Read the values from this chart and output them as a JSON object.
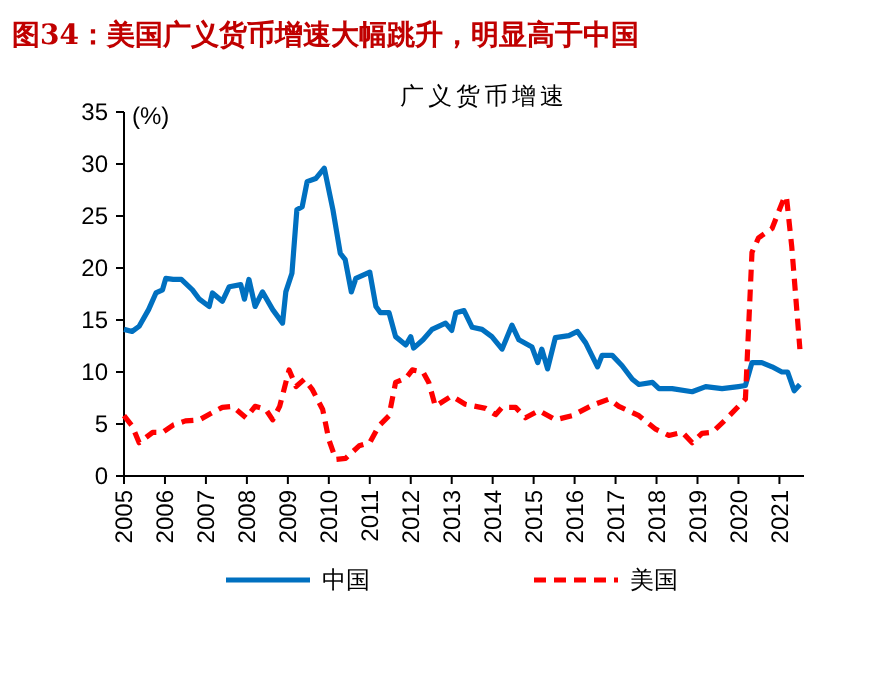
{
  "chart_data": {
    "type": "line",
    "title": "图34：美国广义货币增速大幅跳升，明显高于中国",
    "subtitle": "广义货币增速",
    "ylabel": "(%)",
    "xlim": [
      2005,
      2021.6
    ],
    "xticks": [
      2005,
      2006,
      2007,
      2008,
      2009,
      2010,
      2011,
      2012,
      2013,
      2014,
      2015,
      2016,
      2017,
      2018,
      2019,
      2020,
      2021
    ],
    "ylim": [
      0,
      35
    ],
    "yticks": [
      0,
      5,
      10,
      15,
      20,
      25,
      30,
      35
    ],
    "grid": false,
    "legend": "bottom",
    "series": [
      {
        "name": "中国",
        "color": "#0070c0",
        "line_style": "solid",
        "x": [
          2005.0,
          2005.2,
          2005.37,
          2005.6,
          2005.78,
          2005.94,
          2006.02,
          2006.2,
          2006.4,
          2006.67,
          2006.84,
          2007.08,
          2007.16,
          2007.4,
          2007.57,
          2007.85,
          2007.94,
          2008.05,
          2008.2,
          2008.38,
          2008.63,
          2008.87,
          2008.95,
          2009.1,
          2009.22,
          2009.35,
          2009.47,
          2009.68,
          2009.89,
          2010.1,
          2010.28,
          2010.4,
          2010.55,
          2010.66,
          2011.0,
          2011.15,
          2011.26,
          2011.47,
          2011.63,
          2011.88,
          2012.0,
          2012.07,
          2012.3,
          2012.52,
          2012.85,
          2013.0,
          2013.1,
          2013.3,
          2013.5,
          2013.74,
          2013.98,
          2014.23,
          2014.47,
          2014.64,
          2014.96,
          2015.1,
          2015.2,
          2015.34,
          2015.53,
          2015.86,
          2016.07,
          2016.27,
          2016.56,
          2016.67,
          2016.92,
          2017.16,
          2017.41,
          2017.57,
          2017.9,
          2018.06,
          2018.38,
          2018.87,
          2019.2,
          2019.6,
          2020.0,
          2020.17,
          2020.33,
          2020.57,
          2020.82,
          2021.06,
          2021.2,
          2021.36,
          2021.5
        ],
        "values": [
          14.1,
          13.9,
          14.4,
          16.0,
          17.6,
          17.9,
          19.0,
          18.9,
          18.9,
          17.9,
          17.0,
          16.3,
          17.6,
          16.8,
          18.2,
          18.4,
          17.0,
          18.9,
          16.3,
          17.7,
          16.0,
          14.7,
          17.7,
          19.5,
          25.6,
          25.9,
          28.3,
          28.6,
          29.6,
          25.6,
          21.4,
          20.8,
          17.7,
          19.0,
          19.6,
          16.3,
          15.7,
          15.7,
          13.4,
          12.6,
          13.4,
          12.3,
          13.1,
          14.1,
          14.7,
          14.0,
          15.7,
          15.9,
          14.3,
          14.1,
          13.4,
          12.2,
          14.5,
          13.1,
          12.4,
          10.9,
          12.2,
          10.3,
          13.3,
          13.5,
          13.9,
          12.8,
          10.5,
          11.6,
          11.6,
          10.6,
          9.3,
          8.8,
          9.0,
          8.4,
          8.4,
          8.1,
          8.6,
          8.4,
          8.6,
          8.7,
          10.9,
          10.9,
          10.5,
          10.0,
          10.0,
          8.2,
          8.8
        ]
      },
      {
        "name": "美国",
        "color": "#ff0000",
        "line_style": "dashed",
        "x": [
          2005.0,
          2005.2,
          2005.37,
          2005.7,
          2005.94,
          2006.2,
          2006.5,
          2006.84,
          2007.16,
          2007.4,
          2007.65,
          2007.98,
          2008.2,
          2008.46,
          2008.63,
          2008.8,
          2009.03,
          2009.2,
          2009.4,
          2009.6,
          2009.85,
          2010.0,
          2010.17,
          2010.41,
          2010.74,
          2011.0,
          2011.22,
          2011.47,
          2011.63,
          2011.88,
          2012.04,
          2012.3,
          2012.44,
          2012.6,
          2013.0,
          2013.33,
          2013.83,
          2014.07,
          2014.23,
          2014.56,
          2014.8,
          2015.13,
          2015.53,
          2015.94,
          2016.43,
          2016.84,
          2017.08,
          2017.57,
          2017.98,
          2018.3,
          2018.63,
          2018.87,
          2019.11,
          2019.36,
          2019.68,
          2020.0,
          2020.17,
          2020.33,
          2020.49,
          2020.82,
          2021.1,
          2021.17,
          2021.3,
          2021.5
        ],
        "values": [
          5.8,
          4.8,
          3.2,
          4.2,
          4.2,
          4.9,
          5.3,
          5.4,
          6.1,
          6.6,
          6.7,
          5.6,
          6.7,
          6.4,
          5.4,
          6.7,
          10.2,
          8.6,
          9.3,
          8.3,
          6.4,
          3.5,
          1.6,
          1.7,
          2.9,
          3.2,
          4.8,
          5.8,
          9.0,
          9.4,
          10.2,
          10.0,
          9.0,
          6.7,
          7.7,
          6.9,
          6.5,
          5.9,
          6.6,
          6.6,
          5.6,
          6.3,
          5.4,
          5.8,
          6.8,
          7.4,
          6.7,
          5.8,
          4.5,
          3.9,
          4.2,
          3.2,
          4.1,
          4.2,
          5.4,
          6.7,
          7.4,
          21.5,
          22.9,
          23.8,
          26.6,
          26.9,
          22.1,
          12.2
        ]
      }
    ]
  }
}
